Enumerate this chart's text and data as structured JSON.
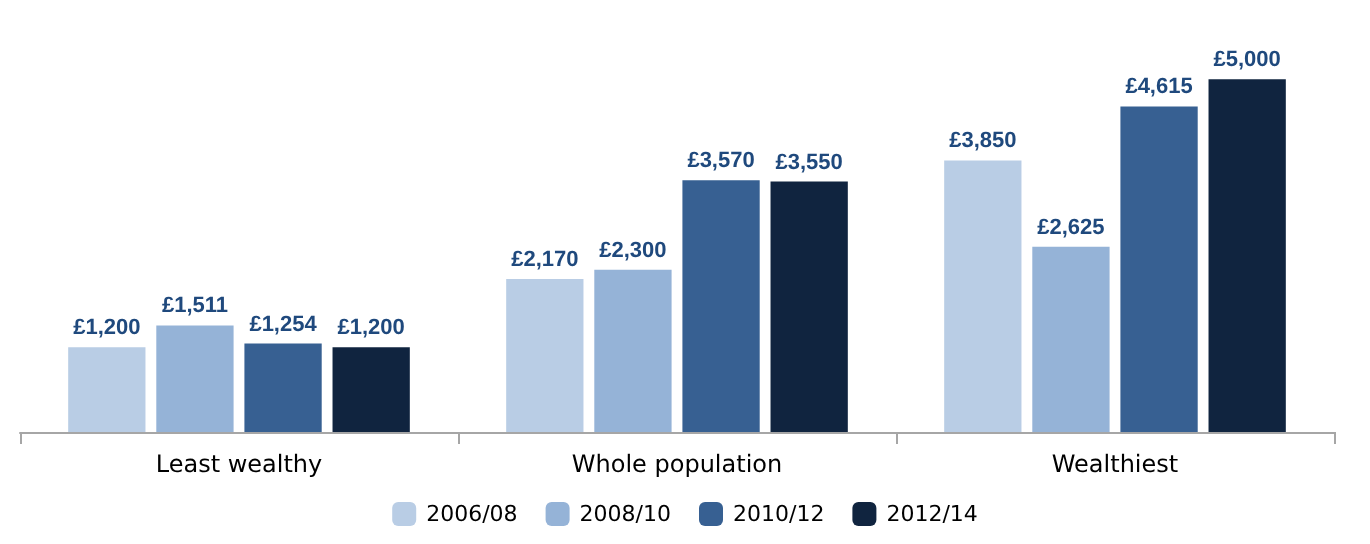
{
  "chart_data": {
    "type": "bar",
    "categories": [
      "Least wealthy",
      "Whole population",
      "Wealthiest"
    ],
    "series": [
      {
        "name": "2006/08",
        "color": "#b9cde5",
        "values": [
          1200,
          2170,
          3850
        ],
        "value_labels": [
          "£1,200",
          "£2,170",
          "£3,850"
        ]
      },
      {
        "name": "2008/10",
        "color": "#95b3d7",
        "values": [
          1511,
          2300,
          2625
        ],
        "value_labels": [
          "£1,511",
          "£2,300",
          "£2,625"
        ]
      },
      {
        "name": "2010/12",
        "color": "#376092",
        "values": [
          1254,
          3570,
          4615
        ],
        "value_labels": [
          "£1,254",
          "£3,570",
          "£4,615"
        ]
      },
      {
        "name": "2012/14",
        "color": "#10243f",
        "values": [
          1200,
          3550,
          5000
        ],
        "value_labels": [
          "£1,200",
          "£3,550",
          "£5,000"
        ]
      }
    ],
    "legend": "bottom"
  }
}
